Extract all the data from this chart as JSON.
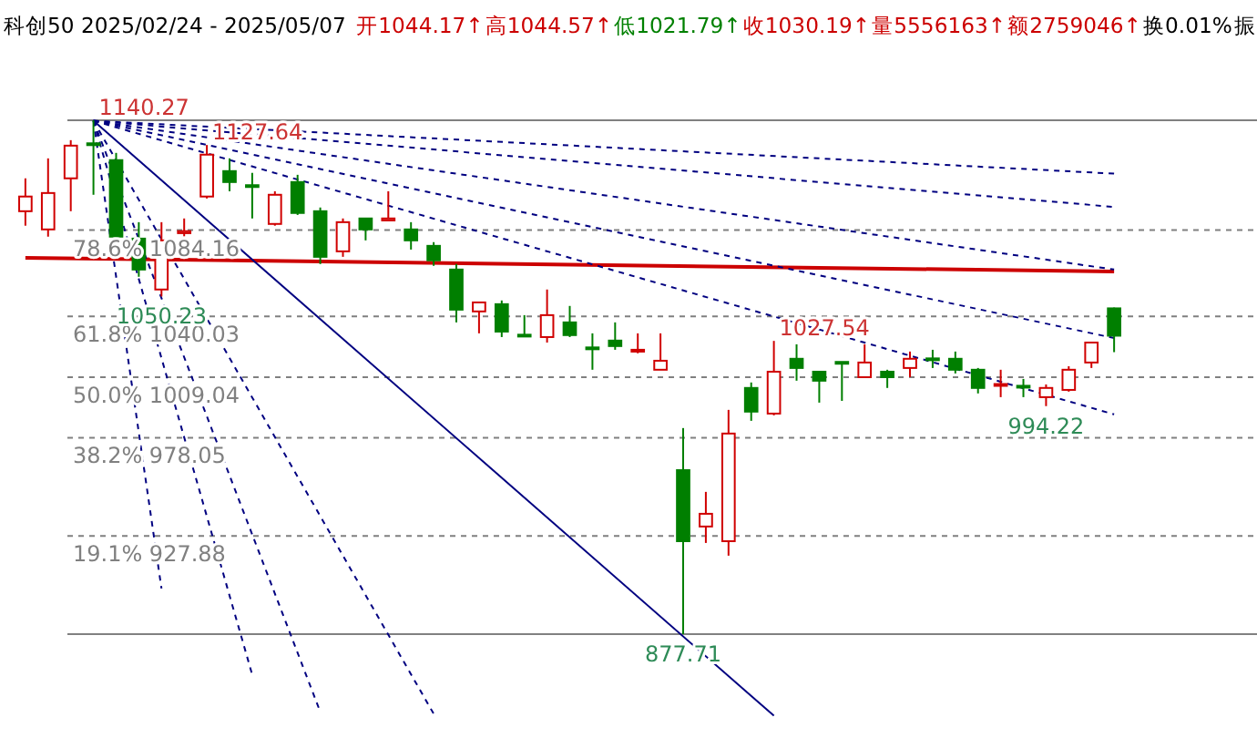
{
  "chart_data": {
    "type": "candlestick",
    "title": "科创50 2025/02/24 - 2025/05/07",
    "categories": [
      null,
      null,
      null,
      null,
      null,
      null,
      null,
      null,
      null,
      null,
      null,
      null,
      null,
      null,
      null,
      null,
      null,
      null,
      null,
      null,
      null,
      null,
      null,
      null,
      null,
      null,
      null,
      null,
      null,
      null,
      null,
      null,
      null,
      null,
      null,
      null,
      null,
      null,
      null,
      null,
      null,
      null,
      null,
      null,
      null,
      null,
      null,
      null,
      null
    ],
    "ohlc": [
      [
        1093.8,
        1110.6,
        1086.4,
        1101.3
      ],
      [
        1084.5,
        1120.8,
        1080.8,
        1103.1
      ],
      [
        1110.6,
        1130.1,
        1093.8,
        1127.3
      ],
      [
        1128.5,
        1140.27,
        1102.2,
        1128.2
      ],
      [
        1119.9,
        1123.6,
        1078.9,
        1080.8
      ],
      [
        1079.8,
        1088.2,
        1060.3,
        1064.0
      ],
      [
        1053.8,
        1088.2,
        1050.23,
        1078.9
      ],
      [
        1082.6,
        1090.1,
        1081.0,
        1083.6
      ],
      [
        1101.3,
        1127.64,
        1100.3,
        1122.7
      ],
      [
        1114.3,
        1120.8,
        1104.0,
        1108.7
      ],
      [
        1107.1,
        1113.4,
        1090.1,
        1106.8
      ],
      [
        1087.3,
        1104.0,
        1086.4,
        1102.2
      ],
      [
        1108.7,
        1112.4,
        1091.9,
        1092.9
      ],
      [
        1093.8,
        1095.7,
        1066.8,
        1070.5
      ],
      [
        1073.3,
        1090.1,
        1070.5,
        1088.2
      ],
      [
        1090.1,
        1090.1,
        1078.9,
        1084.5
      ],
      [
        1089.1,
        1104.0,
        1089.1,
        1090.1
      ],
      [
        1084.5,
        1088.2,
        1074.2,
        1078.9
      ],
      [
        1076.1,
        1078.0,
        1065.9,
        1068.7
      ],
      [
        1064.0,
        1066.8,
        1037.0,
        1043.5
      ],
      [
        1042.6,
        1047.2,
        1031.4,
        1047.2
      ],
      [
        1046.3,
        1048.2,
        1029.5,
        1032.3
      ],
      [
        1030.7,
        1040.7,
        1029.5,
        1030.5
      ],
      [
        1029.5,
        1053.8,
        1026.7,
        1040.7
      ],
      [
        1037.0,
        1045.4,
        1029.5,
        1030.5
      ],
      [
        1024.2,
        1031.4,
        1012.8,
        1023.9
      ],
      [
        1027.7,
        1037.0,
        1023.0,
        1024.9
      ],
      [
        1023.0,
        1031.4,
        1021.2,
        1023.0
      ],
      [
        1012.8,
        1031.4,
        1012.8,
        1017.4
      ],
      [
        961.5,
        983.0,
        877.71,
        925.2
      ],
      [
        932.7,
        950.4,
        924.3,
        939.2
      ],
      [
        925.2,
        992.3,
        917.8,
        980.2
      ],
      [
        1003.5,
        1006.3,
        986.7,
        991.4
      ],
      [
        990.4,
        1027.54,
        989.5,
        1011.8
      ],
      [
        1018.4,
        1025.8,
        1007.2,
        1013.7
      ],
      [
        1011.8,
        1011.8,
        996.0,
        1007.2
      ],
      [
        1016.8,
        1016.8,
        996.9,
        1016.5
      ],
      [
        1009.0,
        1025.8,
        1009.0,
        1016.5
      ],
      [
        1011.8,
        1012.8,
        1003.5,
        1009.0
      ],
      [
        1013.7,
        1022.1,
        1009.0,
        1018.4
      ],
      [
        1018.6,
        1023.0,
        1013.7,
        1018.4
      ],
      [
        1018.4,
        1022.1,
        1010.9,
        1012.8
      ],
      [
        1012.8,
        1013.7,
        1000.7,
        1003.5
      ],
      [
        1005.3,
        1012.8,
        998.8,
        1005.5
      ],
      [
        1004.6,
        1008.1,
        998.8,
        1004.4
      ],
      [
        998.8,
        1005.3,
        994.22,
        1003.5
      ],
      [
        1002.5,
        1014.6,
        1001.6,
        1012.8
      ],
      [
        1016.5,
        1026.7,
        1013.7,
        1026.7
      ],
      [
        1044.17,
        1044.57,
        1021.79,
        1030.19
      ]
    ],
    "series": [
      {
        "type": "line",
        "color": "#cc0000",
        "line_style": "solid",
        "values": [
          1070,
          null,
          null,
          null,
          null,
          null,
          null,
          null,
          null,
          null,
          null,
          null,
          null,
          null,
          null,
          null,
          null,
          null,
          null,
          null,
          null,
          null,
          null,
          null,
          null,
          null,
          null,
          null,
          null,
          null,
          null,
          null,
          null,
          null,
          null,
          null,
          null,
          null,
          null,
          null,
          null,
          null,
          null,
          null,
          null,
          null,
          null,
          null,
          1063
        ]
      },
      {
        "type": "line",
        "color": "#000080",
        "line_style": "solid",
        "values": [
          null,
          null,
          null,
          1140,
          null,
          null,
          null,
          null,
          null,
          null,
          null,
          null,
          null,
          null,
          null,
          null,
          null,
          null,
          null,
          null,
          null,
          null,
          null,
          null,
          null,
          null,
          null,
          null,
          null,
          null,
          null,
          null,
          null,
          836,
          null,
          null,
          null,
          null,
          null,
          null,
          null,
          null,
          null,
          null,
          null,
          null,
          null,
          null,
          null
        ]
      },
      {
        "type": "line",
        "color": "#000080",
        "line_style": "dashed",
        "values": [
          null,
          null,
          null,
          1140,
          null,
          null,
          901,
          null,
          null,
          null,
          null,
          null,
          null,
          null,
          null,
          null,
          null,
          null,
          null,
          null,
          null,
          null,
          null,
          null,
          null,
          null,
          null,
          null,
          null,
          null,
          null,
          null,
          null,
          null,
          null,
          null,
          null,
          null,
          null,
          null,
          null,
          null,
          null,
          null,
          null,
          null,
          null,
          null,
          null
        ]
      },
      {
        "type": "line",
        "color": "#000080",
        "line_style": "dashed",
        "values": [
          null,
          null,
          null,
          1140,
          null,
          null,
          null,
          null,
          null,
          null,
          857,
          null,
          null,
          null,
          null,
          null,
          null,
          null,
          null,
          null,
          null,
          null,
          null,
          null,
          null,
          null,
          null,
          null,
          null,
          null,
          null,
          null,
          null,
          null,
          null,
          null,
          null,
          null,
          null,
          null,
          null,
          null,
          null,
          null,
          null,
          null,
          null,
          null,
          null
        ]
      },
      {
        "type": "line",
        "color": "#000080",
        "line_style": "dashed",
        "values": [
          null,
          null,
          null,
          1140,
          null,
          null,
          null,
          null,
          null,
          null,
          null,
          null,
          null,
          838,
          null,
          null,
          null,
          null,
          null,
          null,
          null,
          null,
          null,
          null,
          null,
          null,
          null,
          null,
          null,
          null,
          null,
          null,
          null,
          null,
          null,
          null,
          null,
          null,
          null,
          null,
          null,
          null,
          null,
          null,
          null,
          null,
          null,
          null,
          null
        ]
      },
      {
        "type": "line",
        "color": "#000080",
        "line_style": "dashed",
        "values": [
          null,
          null,
          null,
          1140,
          null,
          null,
          null,
          null,
          null,
          null,
          null,
          null,
          null,
          null,
          null,
          null,
          null,
          null,
          837,
          null,
          null,
          null,
          null,
          null,
          null,
          null,
          null,
          null,
          null,
          null,
          null,
          null,
          null,
          null,
          null,
          null,
          null,
          null,
          null,
          null,
          null,
          null,
          null,
          null,
          null,
          null,
          null,
          null,
          null
        ]
      },
      {
        "type": "line",
        "color": "#000080",
        "line_style": "dashed",
        "values": [
          null,
          null,
          null,
          1140,
          null,
          null,
          null,
          null,
          null,
          null,
          null,
          null,
          null,
          null,
          null,
          null,
          null,
          null,
          null,
          null,
          null,
          null,
          null,
          null,
          null,
          null,
          null,
          null,
          null,
          null,
          null,
          null,
          null,
          null,
          null,
          null,
          null,
          null,
          null,
          null,
          null,
          null,
          null,
          null,
          null,
          null,
          null,
          null,
          1113
        ]
      },
      {
        "type": "line",
        "color": "#000080",
        "line_style": "dashed",
        "values": [
          null,
          null,
          null,
          1140,
          null,
          null,
          null,
          null,
          null,
          null,
          null,
          null,
          null,
          null,
          null,
          null,
          null,
          null,
          null,
          null,
          null,
          null,
          null,
          null,
          null,
          null,
          null,
          null,
          null,
          null,
          null,
          null,
          null,
          null,
          null,
          null,
          null,
          null,
          null,
          null,
          null,
          null,
          null,
          null,
          null,
          null,
          null,
          null,
          1096
        ]
      },
      {
        "type": "line",
        "color": "#000080",
        "line_style": "dashed",
        "values": [
          null,
          null,
          null,
          1140,
          null,
          null,
          null,
          null,
          null,
          null,
          null,
          null,
          null,
          null,
          null,
          null,
          null,
          null,
          null,
          null,
          null,
          null,
          null,
          null,
          null,
          null,
          null,
          null,
          null,
          null,
          null,
          null,
          null,
          null,
          null,
          null,
          null,
          null,
          null,
          null,
          null,
          null,
          null,
          null,
          null,
          null,
          null,
          null,
          1064
        ]
      },
      {
        "type": "line",
        "color": "#000080",
        "line_style": "dashed",
        "values": [
          null,
          null,
          null,
          1140,
          null,
          null,
          null,
          null,
          null,
          null,
          null,
          null,
          null,
          null,
          null,
          null,
          null,
          null,
          null,
          null,
          null,
          null,
          null,
          null,
          null,
          null,
          null,
          null,
          null,
          null,
          null,
          null,
          null,
          null,
          null,
          null,
          null,
          null,
          null,
          null,
          null,
          null,
          null,
          null,
          null,
          null,
          null,
          null,
          1029
        ]
      },
      {
        "type": "line",
        "color": "#000080",
        "line_style": "dashed",
        "values": [
          null,
          null,
          null,
          1140,
          null,
          null,
          null,
          null,
          null,
          null,
          null,
          null,
          null,
          null,
          null,
          null,
          null,
          null,
          null,
          null,
          null,
          null,
          null,
          null,
          null,
          null,
          null,
          null,
          null,
          null,
          null,
          null,
          null,
          null,
          null,
          null,
          null,
          null,
          null,
          null,
          null,
          null,
          null,
          null,
          null,
          null,
          null,
          null,
          990
        ]
      }
    ],
    "ref_lines": [
      {
        "axis": "y",
        "value": 1140.27,
        "color": "#808080",
        "line_style": "solid"
      },
      {
        "axis": "y",
        "value": 1084.16,
        "label": "78.6% 1084.16",
        "color": "#808080",
        "line_style": "dashed"
      },
      {
        "axis": "y",
        "value": 1040.03,
        "label": "61.8% 1040.03",
        "color": "#808080",
        "line_style": "dashed"
      },
      {
        "axis": "y",
        "value": 1009.04,
        "label": "50.0% 1009.04",
        "color": "#808080",
        "line_style": "dashed"
      },
      {
        "axis": "y",
        "value": 978.05,
        "label": "38.2% 978.05",
        "color": "#808080",
        "line_style": "dashed"
      },
      {
        "axis": "y",
        "value": 927.88,
        "label": "19.1% 927.88",
        "color": "#808080",
        "line_style": "dashed"
      },
      {
        "axis": "y",
        "value": 877.71,
        "color": "#808080",
        "line_style": "solid"
      }
    ],
    "annotations": [
      "开1044.17↑",
      "高1044.57↑",
      "低1021.79↑",
      "收1030.19↑",
      "量5556163↑",
      "额2759046↑",
      "换0.01%",
      "振",
      {
        "text": "1140.27",
        "y": 1140.27
      },
      {
        "text": "1127.64",
        "y": 1127.64
      },
      {
        "text": "1050.23",
        "y": 1050.23
      },
      {
        "text": "1027.54",
        "y": 1027.54
      },
      {
        "text": "994.22",
        "y": 994.22
      },
      {
        "text": "877.71",
        "y": 877.71
      }
    ]
  }
}
